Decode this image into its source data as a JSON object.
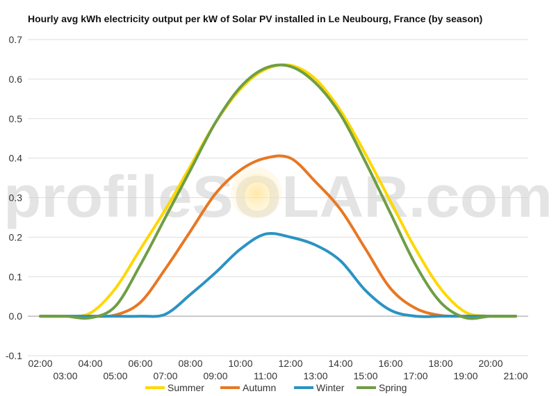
{
  "chart_data": {
    "type": "line",
    "title": "Hourly avg kWh electricity output per kW of Solar PV installed in Le Neubourg, France (by season)",
    "xlabel": "",
    "ylabel": "",
    "ylim": [
      -0.1,
      0.7
    ],
    "yticks": [
      "-0.1",
      "0.0",
      "0.1",
      "0.2",
      "0.3",
      "0.4",
      "0.5",
      "0.6",
      "0.7"
    ],
    "x_tick_labels": [
      "02:00",
      "03:00",
      "04:00",
      "05:00",
      "06:00",
      "07:00",
      "08:00",
      "09:00",
      "10:00",
      "11:00",
      "12:00",
      "13:00",
      "14:00",
      "15:00",
      "16:00",
      "17:00",
      "18:00",
      "19:00",
      "20:00",
      "21:00"
    ],
    "x_hours": [
      2,
      3,
      4,
      5,
      6,
      7,
      8,
      9,
      10,
      11,
      12,
      13,
      14,
      15,
      16,
      17,
      18,
      19,
      20,
      21
    ],
    "grid": true,
    "legend_position": "bottom",
    "watermark": "profileSOLAR.com",
    "series": [
      {
        "name": "Summer",
        "color": "#FFD700",
        "values": [
          0.0,
          0.0,
          0.008,
          0.07,
          0.17,
          0.27,
          0.38,
          0.49,
          0.575,
          0.625,
          0.635,
          0.6,
          0.52,
          0.41,
          0.29,
          0.17,
          0.07,
          0.01,
          0.0,
          0.0
        ]
      },
      {
        "name": "Autumn",
        "color": "#E87722",
        "values": [
          0.0,
          0.0,
          0.0,
          0.003,
          0.035,
          0.12,
          0.215,
          0.31,
          0.37,
          0.4,
          0.4,
          0.34,
          0.27,
          0.17,
          0.07,
          0.02,
          0.002,
          0.0,
          0.0,
          0.0
        ]
      },
      {
        "name": "Winter",
        "color": "#2B93C2",
        "values": [
          0.0,
          0.0,
          0.0,
          0.0,
          0.0,
          0.005,
          0.055,
          0.11,
          0.17,
          0.208,
          0.2,
          0.18,
          0.14,
          0.065,
          0.015,
          0.0,
          0.0,
          0.0,
          0.0,
          0.0
        ]
      },
      {
        "name": "Spring",
        "color": "#6E9E45",
        "values": [
          0.0,
          0.0,
          -0.004,
          0.025,
          0.13,
          0.25,
          0.37,
          0.49,
          0.58,
          0.628,
          0.632,
          0.59,
          0.51,
          0.39,
          0.26,
          0.13,
          0.035,
          -0.004,
          0.0,
          0.0
        ]
      }
    ]
  }
}
